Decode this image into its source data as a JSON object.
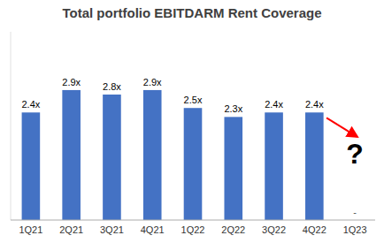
{
  "chart_data": {
    "type": "bar",
    "title": "Total portfolio EBITDARM Rent Coverage",
    "categories": [
      "1Q21",
      "2Q21",
      "3Q21",
      "4Q21",
      "1Q22",
      "2Q22",
      "3Q22",
      "4Q22",
      "1Q23"
    ],
    "values": [
      2.4,
      2.9,
      2.8,
      2.9,
      2.5,
      2.3,
      2.4,
      2.4,
      0
    ],
    "value_labels": [
      "2.4x",
      "2.9x",
      "2.8x",
      "2.9x",
      "2.5x",
      "2.3x",
      "2.4x",
      "2.4x",
      "-"
    ],
    "data_labels": true,
    "color": "#4472C4",
    "ylim": [
      0,
      4.2
    ],
    "tick_labels": "x",
    "grid": false,
    "annotations": [
      {
        "text": "?"
      }
    ]
  }
}
